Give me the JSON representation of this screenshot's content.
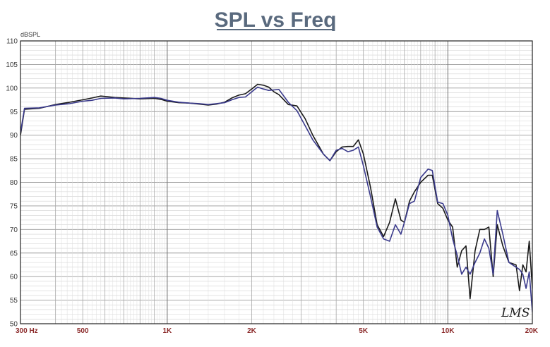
{
  "chart_data": {
    "type": "line",
    "title": "SPL vs Freq",
    "ylabel": "dBSPL",
    "xlabel": "",
    "xscale": "log",
    "xlim": [
      300,
      20000
    ],
    "ylim": [
      50,
      110
    ],
    "yticks": [
      50,
      55,
      60,
      65,
      70,
      75,
      80,
      85,
      90,
      95,
      100,
      105,
      110
    ],
    "xticks": [
      {
        "value": 300,
        "label": "300  Hz"
      },
      {
        "value": 500,
        "label": "500"
      },
      {
        "value": 1000,
        "label": "1K"
      },
      {
        "value": 2000,
        "label": "2K"
      },
      {
        "value": 5000,
        "label": "5K"
      },
      {
        "value": 10000,
        "label": "10K"
      },
      {
        "value": 20000,
        "label": "20K"
      }
    ],
    "grid": true,
    "watermark": "LMS",
    "series": [
      {
        "color": "#1a1a1a",
        "points": [
          [
            300,
            90
          ],
          [
            310,
            95.5
          ],
          [
            350,
            95.7
          ],
          [
            400,
            96.5
          ],
          [
            450,
            97
          ],
          [
            500,
            97.5
          ],
          [
            540,
            97.9
          ],
          [
            580,
            98.3
          ],
          [
            650,
            98
          ],
          [
            700,
            97.9
          ],
          [
            800,
            97.7
          ],
          [
            900,
            97.8
          ],
          [
            950,
            97.6
          ],
          [
            1000,
            97.2
          ],
          [
            1100,
            96.9
          ],
          [
            1200,
            96.8
          ],
          [
            1300,
            96.6
          ],
          [
            1400,
            96.4
          ],
          [
            1500,
            96.6
          ],
          [
            1600,
            97
          ],
          [
            1700,
            97.9
          ],
          [
            1800,
            98.5
          ],
          [
            1900,
            98.8
          ],
          [
            2000,
            99.8
          ],
          [
            2100,
            100.8
          ],
          [
            2200,
            100.6
          ],
          [
            2300,
            100.2
          ],
          [
            2400,
            99.2
          ],
          [
            2500,
            98.6
          ],
          [
            2700,
            96.5
          ],
          [
            2900,
            96.2
          ],
          [
            3100,
            93.5
          ],
          [
            3300,
            90
          ],
          [
            3600,
            86
          ],
          [
            3800,
            84.6
          ],
          [
            4000,
            86.5
          ],
          [
            4200,
            87.5
          ],
          [
            4400,
            87.6
          ],
          [
            4600,
            87.6
          ],
          [
            4800,
            89
          ],
          [
            5000,
            86
          ],
          [
            5300,
            79
          ],
          [
            5600,
            71
          ],
          [
            5900,
            68.5
          ],
          [
            6200,
            71.5
          ],
          [
            6500,
            76.5
          ],
          [
            6800,
            72
          ],
          [
            7000,
            71.5
          ],
          [
            7300,
            76
          ],
          [
            7600,
            78
          ],
          [
            8000,
            80
          ],
          [
            8500,
            81.5
          ],
          [
            8800,
            81.5
          ],
          [
            9200,
            75.5
          ],
          [
            9600,
            74.5
          ],
          [
            10000,
            72
          ],
          [
            10400,
            70.5
          ],
          [
            10800,
            62
          ],
          [
            11200,
            65.5
          ],
          [
            11600,
            66.5
          ],
          [
            12000,
            55.3
          ],
          [
            12500,
            65.5
          ],
          [
            13000,
            70
          ],
          [
            13500,
            70
          ],
          [
            14000,
            70.5
          ],
          [
            14500,
            60
          ],
          [
            15000,
            71
          ],
          [
            15700,
            66.5
          ],
          [
            16500,
            63
          ],
          [
            17500,
            62.5
          ],
          [
            18000,
            57
          ],
          [
            18500,
            62.5
          ],
          [
            19000,
            61
          ],
          [
            19500,
            67.5
          ],
          [
            20000,
            57.5
          ],
          [
            20500,
            58
          ],
          [
            21000,
            55.5
          ],
          [
            22000,
            52.5
          ]
        ]
      },
      {
        "color": "#3a3a8c",
        "points": [
          [
            300,
            90.5
          ],
          [
            310,
            95.7
          ],
          [
            350,
            95.8
          ],
          [
            400,
            96.4
          ],
          [
            450,
            96.7
          ],
          [
            500,
            97.2
          ],
          [
            540,
            97.4
          ],
          [
            580,
            97.8
          ],
          [
            650,
            97.9
          ],
          [
            700,
            97.7
          ],
          [
            800,
            97.8
          ],
          [
            900,
            98
          ],
          [
            950,
            97.8
          ],
          [
            1000,
            97.4
          ],
          [
            1100,
            97
          ],
          [
            1200,
            96.8
          ],
          [
            1300,
            96.7
          ],
          [
            1400,
            96.5
          ],
          [
            1500,
            96.7
          ],
          [
            1600,
            96.9
          ],
          [
            1700,
            97.5
          ],
          [
            1800,
            98
          ],
          [
            1900,
            98.1
          ],
          [
            2000,
            99.2
          ],
          [
            2100,
            100.2
          ],
          [
            2200,
            99.8
          ],
          [
            2300,
            99.5
          ],
          [
            2400,
            99.6
          ],
          [
            2500,
            99.7
          ],
          [
            2700,
            97
          ],
          [
            2900,
            95.2
          ],
          [
            3100,
            92
          ],
          [
            3300,
            89
          ],
          [
            3600,
            86
          ],
          [
            3800,
            84.6
          ],
          [
            4000,
            86.8
          ],
          [
            4200,
            87.2
          ],
          [
            4400,
            86.5
          ],
          [
            4600,
            86.8
          ],
          [
            4800,
            87.5
          ],
          [
            5000,
            83.5
          ],
          [
            5300,
            77
          ],
          [
            5600,
            70.5
          ],
          [
            5900,
            68
          ],
          [
            6200,
            67.5
          ],
          [
            6500,
            71
          ],
          [
            6800,
            69
          ],
          [
            7000,
            71.5
          ],
          [
            7300,
            75.5
          ],
          [
            7600,
            76
          ],
          [
            8000,
            81
          ],
          [
            8500,
            82.8
          ],
          [
            8800,
            82.5
          ],
          [
            9200,
            75.8
          ],
          [
            9600,
            75.5
          ],
          [
            10000,
            73
          ],
          [
            10400,
            68
          ],
          [
            10800,
            64.5
          ],
          [
            11200,
            60.5
          ],
          [
            11600,
            62
          ],
          [
            12000,
            60.5
          ],
          [
            12500,
            63
          ],
          [
            13000,
            65
          ],
          [
            13500,
            68
          ],
          [
            14000,
            66
          ],
          [
            14500,
            60.5
          ],
          [
            15000,
            74
          ],
          [
            15700,
            69
          ],
          [
            16500,
            63
          ],
          [
            17500,
            62
          ],
          [
            18000,
            61.5
          ],
          [
            18500,
            60.5
          ],
          [
            19000,
            57.5
          ],
          [
            19500,
            61
          ],
          [
            20000,
            52.5
          ],
          [
            20500,
            53
          ],
          [
            21000,
            55.5
          ],
          [
            22000,
            53
          ]
        ]
      }
    ]
  }
}
